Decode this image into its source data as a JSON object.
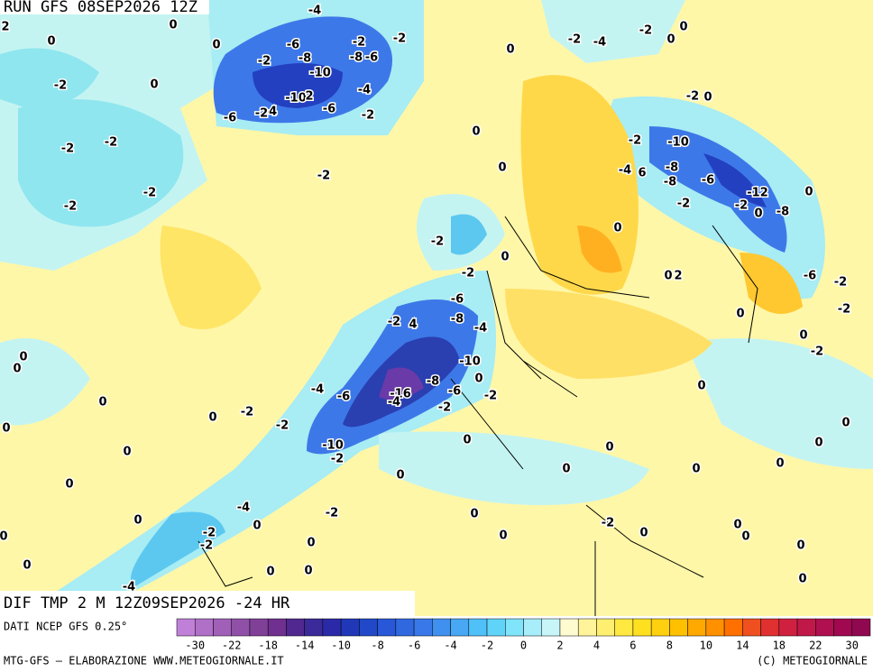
{
  "header": {
    "run": "RUN GFS 08SEP2026 12Z"
  },
  "map": {
    "labels": [
      "-4",
      "2",
      "0",
      "0",
      "0",
      "-6",
      "-2",
      "-2",
      "-2",
      "-8",
      "-8",
      "-6",
      "0",
      "-2",
      "-4",
      "0",
      "-2",
      "0",
      "0",
      "-2",
      "-10",
      "-4",
      "-10",
      "2",
      "-6",
      "-4",
      "-2",
      "-6",
      "-2",
      "-2",
      "0",
      "-2",
      "-2",
      "0",
      "-2",
      "-10",
      "-4",
      "6",
      "-8",
      "0",
      "-2",
      "-2",
      "-8",
      "-6",
      "-12",
      "0",
      "-2",
      "-2",
      "0",
      "-8",
      "-2",
      "0",
      "-2",
      "0",
      "-2",
      "0",
      "2",
      "-6",
      "-2",
      "-6",
      "-2",
      "0",
      "-8",
      "-2",
      "4",
      "-4",
      "0",
      "-2",
      "0",
      "-10",
      "0",
      "0",
      "-8",
      "-4",
      "-6",
      "-16",
      "-6",
      "-2",
      "0",
      "0",
      "-4",
      "-2",
      "0",
      "-2",
      "0",
      "-2",
      "0",
      "0",
      "0",
      "-10",
      "-2",
      "0",
      "0",
      "0",
      "0",
      "0",
      "0",
      "0",
      "-4",
      "-2",
      "0",
      "-2",
      "0",
      "0",
      "-2",
      "0",
      "0",
      "-2",
      "0",
      "0",
      "0",
      "0",
      "0",
      "0",
      "0",
      "0",
      "-4",
      "0"
    ]
  },
  "caption": {
    "title": "DIF TMP 2 M 12Z09SEP2026 -24 HR",
    "source": "DATI NCEP GFS 0.25°",
    "credit": "MTG-GFS — ELABORAZIONE WWW.METEOGIORNALE.IT",
    "copyright": "(C) METEOGIORNALE"
  },
  "colorbar": {
    "ticks": [
      -30,
      -22,
      -18,
      -14,
      -10,
      -8,
      -6,
      -4,
      -2,
      0,
      2,
      4,
      6,
      8,
      10,
      14,
      18,
      22,
      30
    ]
  }
}
